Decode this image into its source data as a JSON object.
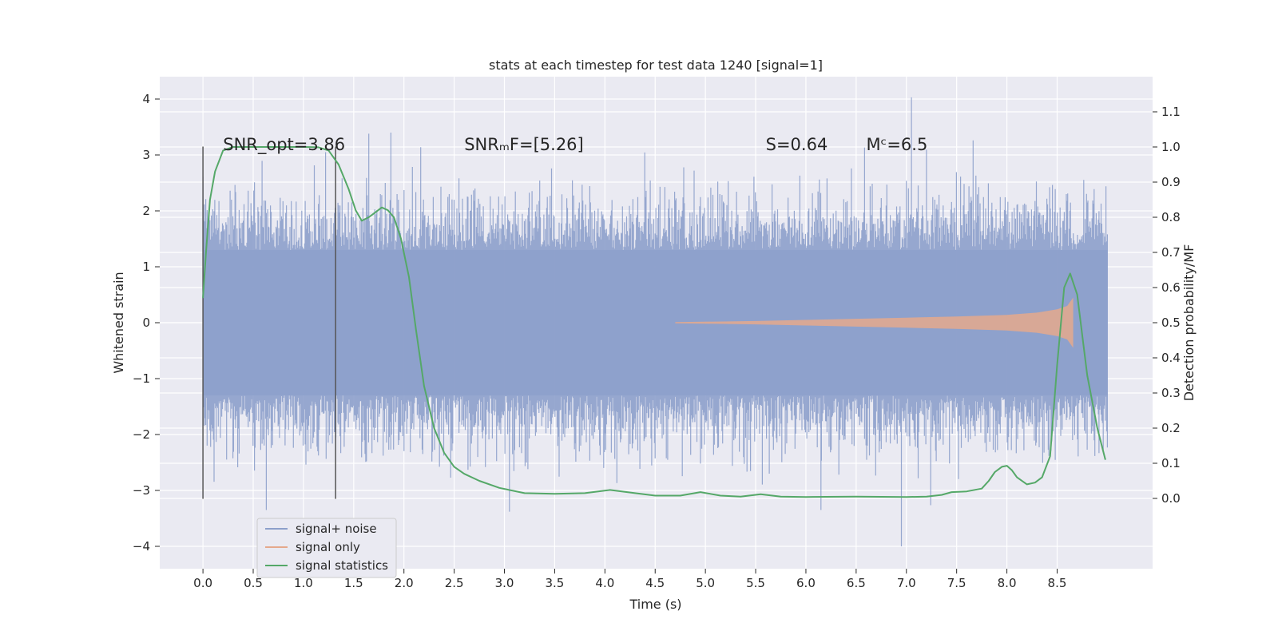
{
  "chart_data": {
    "type": "line",
    "title": "stats at each timestep for test data 1240 [signal=1]",
    "xlabel": "Time (s)",
    "ylabel_left": "Whitened strain",
    "ylabel_right": "Detection probability/MF",
    "xlim": [
      -0.43,
      9.45
    ],
    "ylim_left": [
      -4.4,
      4.4
    ],
    "ylim_right": [
      -0.2,
      1.2
    ],
    "x_ticks": [
      0.0,
      0.5,
      1.0,
      1.5,
      2.0,
      2.5,
      3.0,
      3.5,
      4.0,
      4.5,
      5.0,
      5.5,
      6.0,
      6.5,
      7.0,
      7.5,
      8.0,
      8.5
    ],
    "x_tick_labels": [
      "0.0",
      "0.5",
      "1.0",
      "1.5",
      "2.0",
      "2.5",
      "3.0",
      "3.5",
      "4.0",
      "4.5",
      "5.0",
      "5.5",
      "6.0",
      "6.5",
      "7.0",
      "7.5",
      "8.0",
      "8.5"
    ],
    "y_left_ticks": [
      -4,
      -3,
      -2,
      -1,
      0,
      1,
      2,
      3,
      4
    ],
    "y_left_tick_labels": [
      "−4",
      "−3",
      "−2",
      "−1",
      "0",
      "1",
      "2",
      "3",
      "4"
    ],
    "y_right_ticks": [
      0.0,
      0.1,
      0.2,
      0.3,
      0.4,
      0.5,
      0.6,
      0.7,
      0.8,
      0.9,
      1.0,
      1.1
    ],
    "y_right_tick_labels": [
      "0.0",
      "0.1",
      "0.2",
      "0.3",
      "0.4",
      "0.5",
      "0.6",
      "0.7",
      "0.8",
      "0.9",
      "1.0",
      "1.1"
    ],
    "grid": true,
    "annotations": [
      {
        "id": "snr-opt",
        "text": "SNR_opt=3.86",
        "x": 0.2,
        "y": 3.2
      },
      {
        "id": "snr-mf",
        "text": "SNRₘF=[5.26]",
        "x": 2.6,
        "y": 3.2
      },
      {
        "id": "s-value",
        "text": "S=0.64",
        "x": 5.6,
        "y": 3.2
      },
      {
        "id": "mc-value",
        "text": "Mᶜ=6.5",
        "x": 6.6,
        "y": 3.2
      }
    ],
    "vertical_lines": [
      {
        "x": 0.0,
        "y_range": [
          -3.15,
          3.15
        ]
      },
      {
        "x": 1.32,
        "y_range": [
          -3.15,
          3.15
        ]
      }
    ],
    "series": [
      {
        "name": "signal+ noise",
        "color": "#8da0cb",
        "axis": "left",
        "description": "noisy whitened strain, roughly ±1.3 dense band with spikes",
        "x_range": [
          0.0,
          9.0
        ],
        "band_core": 1.3,
        "peak_envelope": 2.4,
        "extreme_points": [
          {
            "x": 0.63,
            "y": -3.35
          },
          {
            "x": 1.22,
            "y": 3.05
          },
          {
            "x": 1.65,
            "y": 3.38
          },
          {
            "x": 1.87,
            "y": 3.4
          },
          {
            "x": 3.05,
            "y": -3.38
          },
          {
            "x": 6.15,
            "y": -3.35
          },
          {
            "x": 6.95,
            "y": -4.0
          },
          {
            "x": 7.05,
            "y": 4.03
          }
        ]
      },
      {
        "name": "signal only",
        "color": "#e5a98c",
        "axis": "left",
        "description": "chirp signal with growing amplitude",
        "x": [
          4.7,
          5.5,
          6.0,
          6.5,
          7.0,
          7.5,
          8.0,
          8.3,
          8.5,
          8.6,
          8.66
        ],
        "amplitude": [
          0.01,
          0.03,
          0.05,
          0.07,
          0.09,
          0.11,
          0.14,
          0.18,
          0.24,
          0.3,
          0.45
        ]
      },
      {
        "name": "signal statistics",
        "color": "#55a868",
        "axis": "right",
        "x": [
          0.0,
          0.03,
          0.07,
          0.12,
          0.2,
          0.3,
          0.5,
          0.8,
          1.0,
          1.15,
          1.25,
          1.35,
          1.45,
          1.52,
          1.58,
          1.65,
          1.72,
          1.78,
          1.84,
          1.9,
          1.97,
          2.05,
          2.12,
          2.2,
          2.3,
          2.4,
          2.5,
          2.6,
          2.75,
          2.95,
          3.2,
          3.5,
          3.8,
          4.05,
          4.3,
          4.5,
          4.75,
          4.95,
          5.15,
          5.35,
          5.55,
          5.75,
          6.0,
          6.5,
          7.0,
          7.2,
          7.35,
          7.45,
          7.6,
          7.75,
          7.82,
          7.88,
          7.95,
          8.0,
          8.05,
          8.1,
          8.2,
          8.28,
          8.35,
          8.43,
          8.5,
          8.57,
          8.63,
          8.7,
          8.8,
          8.9,
          8.98
        ],
        "values": [
          0.57,
          0.7,
          0.85,
          0.93,
          0.99,
          1.0,
          1.0,
          1.0,
          1.0,
          0.999,
          0.99,
          0.95,
          0.88,
          0.82,
          0.79,
          0.8,
          0.815,
          0.828,
          0.82,
          0.8,
          0.74,
          0.63,
          0.48,
          0.32,
          0.2,
          0.13,
          0.09,
          0.07,
          0.05,
          0.03,
          0.015,
          0.013,
          0.015,
          0.024,
          0.015,
          0.008,
          0.008,
          0.018,
          0.008,
          0.005,
          0.012,
          0.005,
          0.004,
          0.005,
          0.004,
          0.005,
          0.01,
          0.018,
          0.02,
          0.028,
          0.05,
          0.075,
          0.09,
          0.093,
          0.08,
          0.06,
          0.04,
          0.045,
          0.06,
          0.12,
          0.38,
          0.6,
          0.64,
          0.58,
          0.35,
          0.2,
          0.11
        ]
      }
    ],
    "legend": {
      "placement": "lower-left",
      "entries": [
        "signal+ noise",
        "signal only",
        "signal statistics"
      ]
    }
  }
}
